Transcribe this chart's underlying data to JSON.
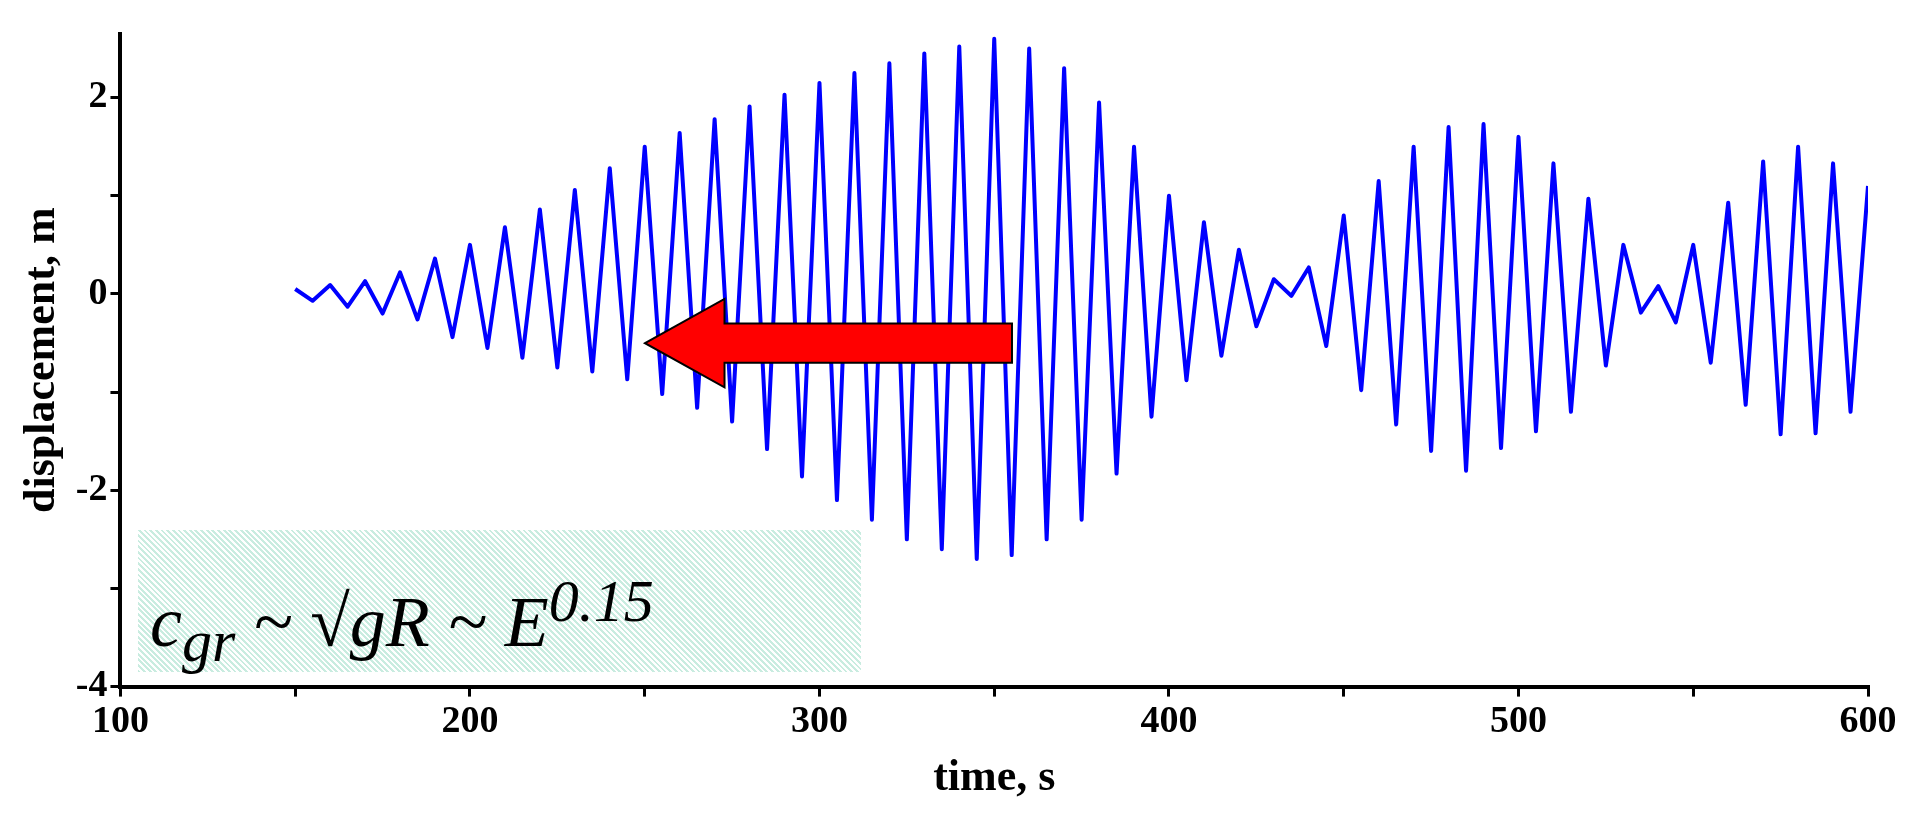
{
  "chart_data": {
    "type": "line",
    "xlabel": "time, s",
    "ylabel": "displacement, m",
    "annotations": [
      "c$_{gr}$ ~ √gR ~ E$^{0.15}$"
    ],
    "xlim": [
      100,
      600
    ],
    "xticks": [
      100,
      {
        "value": 150,
        "label": null
      },
      200,
      {
        "value": 250,
        "label": null
      },
      300,
      {
        "value": 350,
        "label": null
      },
      400,
      {
        "value": 450,
        "label": null
      },
      500,
      {
        "value": 550,
        "label": null
      },
      600
    ],
    "ylim": [
      -4,
      2.65
    ],
    "yticks": [
      -4,
      {
        "value": -3,
        "label": null
      },
      -2,
      {
        "value": -1,
        "label": null
      },
      0,
      {
        "value": 1,
        "label": null
      },
      2
    ],
    "grid": false,
    "legend": false,
    "marker": "none",
    "line_style": "solid",
    "x": [
      150,
      155,
      160,
      165,
      170,
      175,
      180,
      185,
      190,
      195,
      200,
      205,
      210,
      215,
      220,
      225,
      230,
      235,
      240,
      245,
      250,
      255,
      260,
      265,
      270,
      275,
      280,
      285,
      290,
      295,
      300,
      305,
      310,
      315,
      320,
      325,
      330,
      335,
      340,
      345,
      350,
      355,
      360,
      365,
      370,
      375,
      380,
      385,
      390,
      395,
      400,
      405,
      410,
      415,
      420,
      425,
      430,
      435,
      440,
      445,
      450,
      455,
      460,
      465,
      470,
      475,
      480,
      485,
      490,
      495,
      500,
      505,
      510,
      515,
      520,
      525,
      530,
      535,
      540,
      545,
      550,
      555,
      560,
      565,
      570,
      575,
      580,
      585,
      590,
      595,
      600
    ],
    "series": [
      {
        "color": "#0000ff",
        "values": [
          0.05,
          -0.07,
          0.09,
          -0.13,
          0.13,
          -0.2,
          0.22,
          -0.26,
          0.36,
          -0.44,
          0.5,
          -0.55,
          0.68,
          -0.65,
          0.86,
          -0.75,
          1.06,
          -0.79,
          1.28,
          -0.87,
          1.5,
          -1.02,
          1.64,
          -1.16,
          1.78,
          -1.3,
          1.91,
          -1.58,
          2.03,
          -1.86,
          2.15,
          -2.1,
          2.25,
          -2.3,
          2.35,
          -2.5,
          2.45,
          -2.6,
          2.52,
          -2.7,
          2.6,
          -2.66,
          2.5,
          -2.5,
          2.3,
          -2.3,
          1.95,
          -1.83,
          1.5,
          -1.25,
          1.0,
          -0.88,
          0.73,
          -0.63,
          0.45,
          -0.33,
          0.15,
          -0.02,
          0.27,
          -0.53,
          0.8,
          -0.98,
          1.15,
          -1.33,
          1.5,
          -1.6,
          1.7,
          -1.8,
          1.73,
          -1.57,
          1.6,
          -1.4,
          1.33,
          -1.2,
          0.97,
          -0.73,
          0.5,
          -0.19,
          0.08,
          -0.29,
          0.5,
          -0.7,
          0.93,
          -1.13,
          1.35,
          -1.43,
          1.5,
          -1.42,
          1.33,
          -1.2,
          1.1
        ]
      }
    ]
  }
}
